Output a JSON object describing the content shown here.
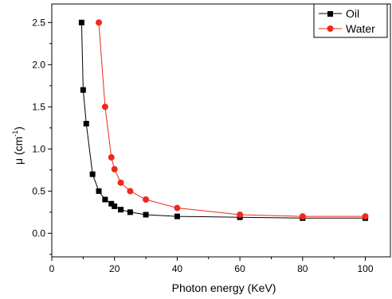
{
  "chart_data": {
    "type": "line",
    "title": "",
    "xlabel": "Photon energy (KeV)",
    "ylabel_main": "μ (cm",
    "ylabel_sup": "-1",
    "ylabel_close": ")",
    "xlim": [
      0,
      108
    ],
    "ylim": [
      -0.28,
      2.72
    ],
    "xticks": [
      0,
      20,
      40,
      60,
      80,
      100
    ],
    "yticks": [
      0.0,
      0.5,
      1.0,
      1.5,
      2.0,
      2.5
    ],
    "xtick_labels": [
      "0",
      "20",
      "40",
      "60",
      "80",
      "100"
    ],
    "ytick_labels": [
      "0.0",
      "0.5",
      "1.0",
      "1.5",
      "2.0",
      "2.5"
    ],
    "grid": false,
    "legend_position": "top-right",
    "series": [
      {
        "name": "Oil",
        "color": "#000000",
        "marker": "square",
        "x": [
          9.5,
          10,
          11,
          13,
          15,
          17,
          19,
          20,
          22,
          25,
          30,
          40,
          60,
          80,
          100
        ],
        "y": [
          2.5,
          1.7,
          1.3,
          0.7,
          0.5,
          0.4,
          0.35,
          0.32,
          0.28,
          0.25,
          0.22,
          0.2,
          0.19,
          0.18,
          0.18
        ]
      },
      {
        "name": "Water",
        "color": "#ee2a1b",
        "marker": "circle",
        "x": [
          15,
          17,
          19,
          20,
          22,
          25,
          30,
          40,
          60,
          80,
          100
        ],
        "y": [
          2.5,
          1.5,
          0.9,
          0.76,
          0.6,
          0.5,
          0.4,
          0.3,
          0.22,
          0.2,
          0.2
        ]
      }
    ]
  }
}
